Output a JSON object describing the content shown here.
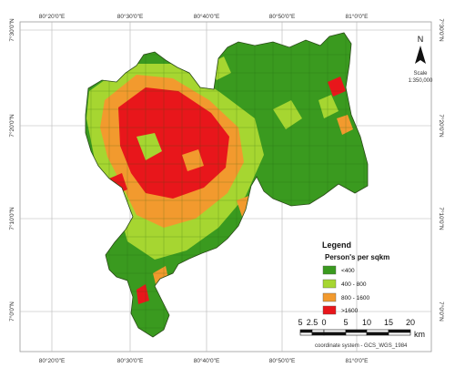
{
  "map": {
    "top_lon_ticks": [
      "80°20'0\"E",
      "80°30'0\"E",
      "80°40'0\"E",
      "80°50'0\"E",
      "81°0'0\"E"
    ],
    "bottom_lon_ticks": [
      "80°20'0\"E",
      "80°30'0\"E",
      "80°40'0\"E",
      "80°50'0\"E",
      "81°0'0\"E"
    ],
    "left_lat_ticks": [
      "7°30'0\"N",
      "7°20'0\"N",
      "7°10'0\"N",
      "7°0'0\"N"
    ],
    "right_lat_ticks": [
      "7°30'0\"N",
      "7°20'0\"N",
      "7°10'0\"N",
      "7°0'0\"N"
    ]
  },
  "north_arrow": {
    "label": "N",
    "scale_label": "Scale",
    "scale_value": "1:350,000"
  },
  "legend": {
    "title": "Legend",
    "subtitle": "Person's per sqkm",
    "classes": [
      {
        "label": "<400",
        "color": "#3a9a1f"
      },
      {
        "label": "400 - 800",
        "color": "#a6d631"
      },
      {
        "label": "800 - 1600",
        "color": "#f29a2e"
      },
      {
        "label": ">1600",
        "color": "#e8161b"
      }
    ]
  },
  "scale_bar": {
    "ticks": [
      "5",
      "2.5",
      "0",
      "5",
      "10",
      "15",
      "20"
    ],
    "unit": "km",
    "coord_system": "coordinate system - GCS_WGS_1984"
  }
}
